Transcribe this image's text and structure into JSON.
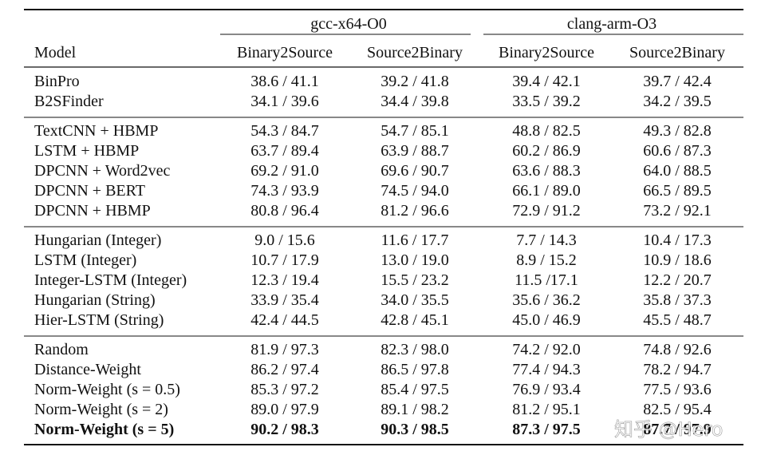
{
  "header": {
    "groups": [
      "gcc-x64-O0",
      "clang-arm-O3"
    ],
    "columns": [
      "Model",
      "Binary2Source",
      "Source2Binary",
      "Binary2Source",
      "Source2Binary"
    ]
  },
  "table": {
    "groups": [
      [
        [
          "BinPro",
          "38.6 / 41.1",
          "39.2 / 41.8",
          "39.4 / 42.1",
          "39.7 / 42.4"
        ],
        [
          "B2SFinder",
          "34.1 / 39.6",
          "34.4 / 39.8",
          "33.5 / 39.2",
          "34.2 / 39.5"
        ]
      ],
      [
        [
          "TextCNN + HBMP",
          "54.3 / 84.7",
          "54.7 / 85.1",
          "48.8 / 82.5",
          "49.3 / 82.8"
        ],
        [
          "LSTM + HBMP",
          "63.7 / 89.4",
          "63.9 / 88.7",
          "60.2 / 86.9",
          "60.6 / 87.3"
        ],
        [
          "DPCNN + Word2vec",
          "69.2 / 91.0",
          "69.6 / 90.7",
          "63.6 / 88.3",
          "64.0 / 88.5"
        ],
        [
          "DPCNN + BERT",
          "74.3 / 93.9",
          "74.5 / 94.0",
          "66.1 / 89.0",
          "66.5 / 89.5"
        ],
        [
          "DPCNN + HBMP",
          "80.8 / 96.4",
          "81.2 / 96.6",
          "72.9 / 91.2",
          "73.2 / 92.1"
        ]
      ],
      [
        [
          "Hungarian (Integer)",
          "9.0 / 15.6",
          "11.6 / 17.7",
          "7.7 / 14.3",
          "10.4 / 17.3"
        ],
        [
          "LSTM (Integer)",
          "10.7 / 17.9",
          "13.0 / 19.0",
          "8.9 / 15.2",
          "10.9 / 18.6"
        ],
        [
          "Integer-LSTM (Integer)",
          "12.3 / 19.4",
          "15.5 / 23.2",
          "11.5 /17.1",
          "12.2 / 20.7"
        ],
        [
          "Hungarian (String)",
          "33.9 / 35.4",
          "34.0 / 35.5",
          "35.6 / 36.2",
          "35.8 / 37.3"
        ],
        [
          "Hier-LSTM (String)",
          "42.4 / 44.5",
          "42.8 / 45.1",
          "45.0 / 46.9",
          "45.5 / 48.7"
        ]
      ],
      [
        [
          "Random",
          "81.9 / 97.3",
          "82.3 / 98.0",
          "74.2 / 92.0",
          "74.8 / 92.6"
        ],
        [
          "Distance-Weight",
          "86.2 / 97.4",
          "86.5 / 97.8",
          "77.4 / 94.3",
          "78.2 / 94.7"
        ],
        [
          "Norm-Weight (s = 0.5)",
          "85.3 / 97.2",
          "85.4 / 97.5",
          "76.9 / 93.4",
          "77.5 / 93.6"
        ],
        [
          "Norm-Weight (s = 2)",
          "89.0 / 97.9",
          "89.1 / 98.2",
          "81.2 / 95.1",
          "82.5 / 95.4"
        ],
        [
          "Norm-Weight (s = 5)",
          "90.2 / 98.3",
          "90.3 / 98.5",
          "87.3 / 97.5",
          "87.7 / 97.9"
        ]
      ]
    ]
  },
  "watermark": "知乎 @Hero"
}
